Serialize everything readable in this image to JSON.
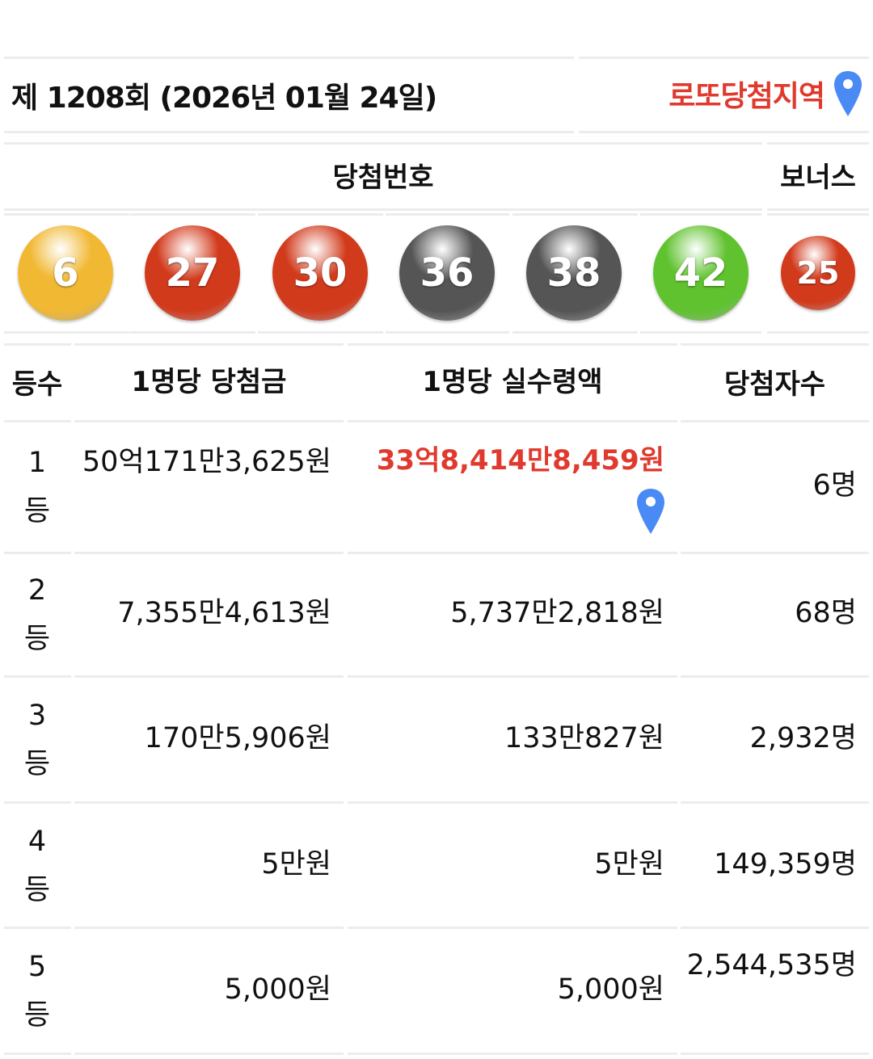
{
  "header": {
    "title": "제 1208회 (2026년 01월 24일)",
    "region_link": "로또당첨지역",
    "region_icon": "map-pin-icon"
  },
  "numbers": {
    "label": "당첨번호",
    "bonus_label": "보너스",
    "balls": [
      {
        "n": "6",
        "color": "#f1b833"
      },
      {
        "n": "27",
        "color": "#d23a1c"
      },
      {
        "n": "30",
        "color": "#d23a1c"
      },
      {
        "n": "36",
        "color": "#555555"
      },
      {
        "n": "38",
        "color": "#555555"
      },
      {
        "n": "42",
        "color": "#5fc22e"
      }
    ],
    "bonus": {
      "n": "25",
      "color": "#d23a1c"
    }
  },
  "table": {
    "headers": [
      "등수",
      "1명당 당첨금",
      "1명당 실수령액",
      "당첨자수"
    ],
    "rows": [
      {
        "rank": "1",
        "unit": "등",
        "prize": "50억171만3,625원",
        "net": "33억8,414만8,459원",
        "winners": "6명"
      },
      {
        "rank": "2",
        "unit": "등",
        "prize": "7,355만4,613원",
        "net": "5,737만2,818원",
        "winners": "68명"
      },
      {
        "rank": "3",
        "unit": "등",
        "prize": "170만5,906원",
        "net": "133만827원",
        "winners": "2,932명"
      },
      {
        "rank": "4",
        "unit": "등",
        "prize": "5만원",
        "net": "5만원",
        "winners": "149,359명"
      },
      {
        "rank": "5",
        "unit": "등",
        "prize": "5,000원",
        "net": "5,000원",
        "winners": "2,544,535명"
      }
    ]
  },
  "colors": {
    "accent_red": "#e03a2e",
    "pin_blue": "#4a8af4"
  }
}
